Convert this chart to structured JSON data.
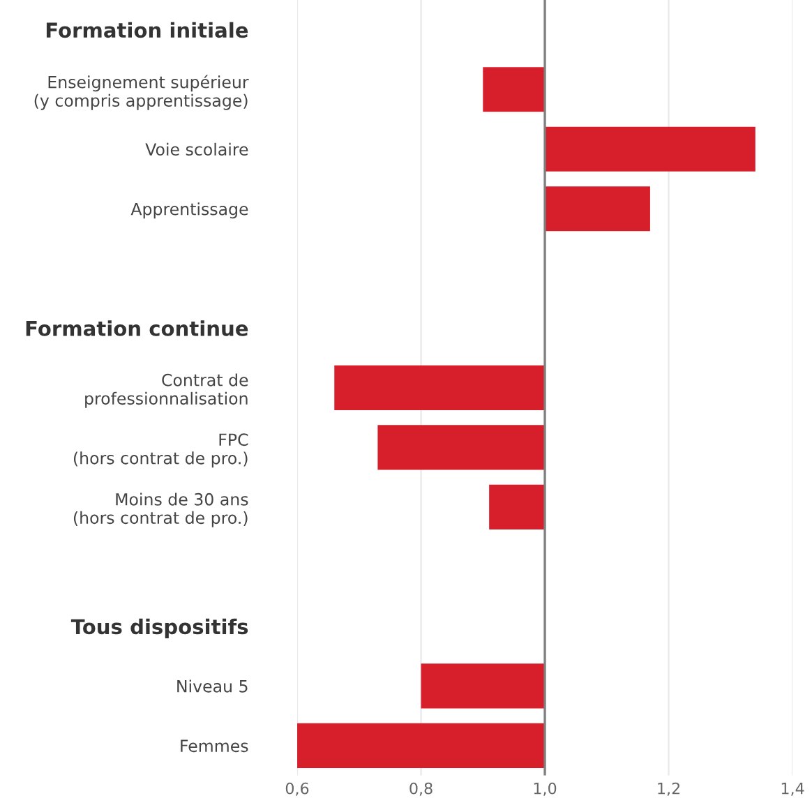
{
  "chart_data": {
    "type": "bar",
    "orientation": "horizontal",
    "categories": [
      "Formation initiale",
      "Enseignement supérieur\n(y compris apprentissage)",
      "Voie scolaire",
      "Apprentissage",
      null,
      "Formation continue",
      "Contrat de\nprofessionnalisation",
      "FPC\n(hors contrat de pro.)",
      "Moins de 30 ans\n(hors contrat de pro.)",
      null,
      "Tous dispositifs",
      "Niveau 5",
      "Femmes"
    ],
    "values": [
      null,
      -0.1,
      0.34,
      0.17,
      null,
      null,
      -0.34,
      -0.27,
      -0.09,
      null,
      null,
      -0.2,
      -0.4
    ],
    "base": [
      null,
      1,
      1,
      1,
      null,
      null,
      1,
      1,
      1,
      null,
      null,
      1,
      1
    ],
    "color": "#d71f2b",
    "xlim": [
      0.6,
      1.4
    ],
    "xticks": [
      {
        "value": 0.6,
        "label": "0,6"
      },
      {
        "value": 0.8,
        "label": "0,8"
      },
      {
        "value": 1.0,
        "label": "1,0"
      },
      {
        "value": 1.2,
        "label": "1,2"
      },
      {
        "value": 1.4,
        "label": "1,4"
      }
    ],
    "grid": "x",
    "ref_lines": [
      {
        "axis": "x",
        "value": 1.0,
        "color": "#7f7f7f"
      }
    ]
  }
}
